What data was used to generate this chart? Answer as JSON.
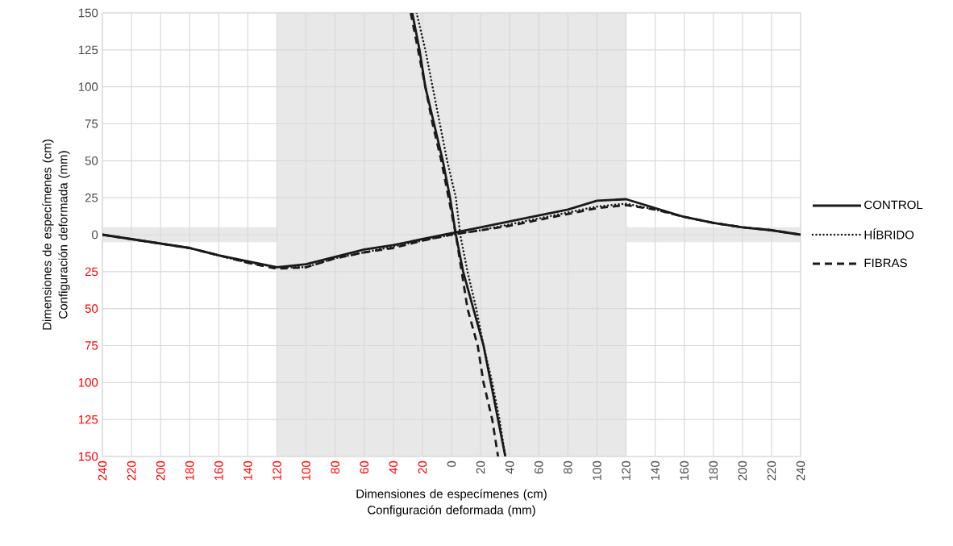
{
  "chart_data": {
    "type": "line",
    "xlabel": "Dimensiones de especímenes (cm) Configuración deformada (mm)",
    "ylabel": "Dimensiones de especímenes (cm) Configuración deformada (mm)",
    "xlim": [
      -240,
      240
    ],
    "ylim": [
      -150,
      150
    ],
    "xticks": [
      {
        "value": -240,
        "label": "240"
      },
      {
        "value": -220,
        "label": "220"
      },
      {
        "value": -200,
        "label": "200"
      },
      {
        "value": -180,
        "label": "180"
      },
      {
        "value": -160,
        "label": "160"
      },
      {
        "value": -140,
        "label": "140"
      },
      {
        "value": -120,
        "label": "120"
      },
      {
        "value": -100,
        "label": "100"
      },
      {
        "value": -80,
        "label": "80"
      },
      {
        "value": -60,
        "label": "60"
      },
      {
        "value": -40,
        "label": "40"
      },
      {
        "value": -20,
        "label": "20"
      },
      0,
      20,
      40,
      60,
      80,
      100,
      120,
      140,
      160,
      180,
      200,
      220,
      240
    ],
    "yticks": [
      {
        "value": -150,
        "label": "150"
      },
      {
        "value": -125,
        "label": "125"
      },
      {
        "value": -100,
        "label": "100"
      },
      {
        "value": -75,
        "label": "75"
      },
      {
        "value": -50,
        "label": "50"
      },
      {
        "value": -25,
        "label": "25"
      },
      0,
      25,
      50,
      75,
      100,
      125,
      150
    ],
    "grid": true,
    "legend": "right",
    "bands": [
      {
        "axis": "x",
        "from": -120,
        "to": 120,
        "color": "#e8e8e8"
      },
      {
        "axis": "y",
        "from": -5,
        "to": 5,
        "color": "#e8e8e8"
      }
    ],
    "series": [
      {
        "name": "CONTROL",
        "color": "#1a1a1a",
        "line_style": "solid",
        "x": [
          -240,
          -220,
          -200,
          -180,
          -160,
          -140,
          -120,
          -100,
          -80,
          -60,
          -40,
          -20,
          0,
          20,
          40,
          60,
          80,
          100,
          120,
          140,
          160,
          180,
          200,
          220,
          240
        ],
        "values": [
          0,
          -3,
          -6,
          -9,
          -14,
          -18,
          -22,
          -20,
          -15,
          -10,
          -7,
          -3,
          1,
          5,
          9,
          13,
          17,
          23,
          24,
          18,
          12,
          8,
          5,
          3,
          0
        ]
      },
      {
        "name": "HÍBRIDO",
        "color": "#1a1a1a",
        "line_style": "dotted",
        "x": [
          -240,
          -220,
          -200,
          -180,
          -160,
          -140,
          -120,
          -100,
          -80,
          -60,
          -40,
          -20,
          0,
          20,
          40,
          60,
          80,
          100,
          120,
          140,
          160,
          180,
          200,
          220,
          240
        ],
        "values": [
          0,
          -3,
          -6,
          -9,
          -14,
          -19,
          -22,
          -22,
          -16,
          -12,
          -8,
          -4,
          0,
          3,
          7,
          11,
          15,
          19,
          21,
          17,
          12,
          8,
          5,
          3,
          0
        ]
      },
      {
        "name": "FIBRAS",
        "color": "#1a1a1a",
        "line_style": "dashed",
        "x": [
          -240,
          -220,
          -200,
          -180,
          -160,
          -140,
          -120,
          -100,
          -80,
          -60,
          -40,
          -20,
          0,
          20,
          40,
          60,
          80,
          100,
          120,
          140,
          160,
          180,
          200,
          220,
          240
        ],
        "values": [
          0,
          -3,
          -6,
          -9,
          -14,
          -19,
          -23,
          -22,
          -16,
          -12,
          -9,
          -4,
          0,
          3,
          6,
          10,
          14,
          18,
          20,
          17,
          12,
          8,
          5,
          3,
          0
        ]
      },
      {
        "color": "#1a1a1a",
        "line_style": "solid",
        "x": [
          -27,
          -22,
          -18,
          -12,
          -6,
          -1,
          3,
          8,
          15,
          22,
          27,
          32,
          37
        ],
        "values": [
          150,
          125,
          100,
          75,
          50,
          25,
          0,
          -25,
          -50,
          -75,
          -100,
          -125,
          -150
        ]
      },
      {
        "color": "#1a1a1a",
        "line_style": "dotted",
        "x": [
          -24,
          -18,
          -13,
          -8,
          -3,
          3,
          6,
          11,
          17,
          22,
          28,
          33,
          37
        ],
        "values": [
          150,
          125,
          100,
          75,
          50,
          25,
          0,
          -25,
          -50,
          -75,
          -100,
          -125,
          -150
        ]
      },
      {
        "color": "#1a1a1a",
        "line_style": "dashed",
        "x": [
          -28,
          -23,
          -18,
          -13,
          -7,
          -2,
          3,
          7,
          11,
          18,
          22,
          28,
          32
        ],
        "values": [
          150,
          125,
          100,
          75,
          50,
          25,
          0,
          -25,
          -50,
          -75,
          -100,
          -125,
          -150
        ]
      }
    ]
  }
}
